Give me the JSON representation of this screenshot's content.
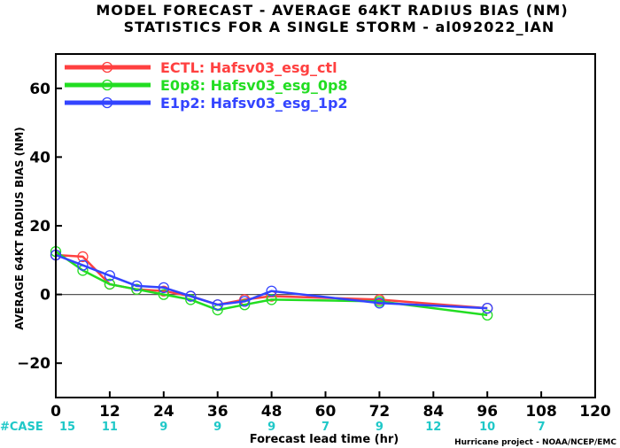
{
  "chart_data": {
    "type": "line",
    "title": "MODEL FORECAST - AVERAGE 64KT RADIUS BIAS (NM)",
    "subtitle": "STATISTICS FOR A SINGLE STORM - al092022_IAN",
    "xlabel": "Forecast lead time (hr)",
    "ylabel": "AVERAGE 64KT RADIUS BIAS (NM)",
    "xlim": [
      0,
      120
    ],
    "ylim": [
      -30,
      70
    ],
    "x_ticks": [
      0,
      12,
      24,
      36,
      48,
      60,
      72,
      84,
      96,
      108,
      120
    ],
    "y_ticks": [
      -20,
      0,
      20,
      40,
      60
    ],
    "x_tick_labels": [
      "0",
      "12",
      "24",
      "36",
      "48",
      "60",
      "72",
      "84",
      "96",
      "108",
      "120"
    ],
    "y_tick_labels": [
      "−20",
      "0",
      "20",
      "40",
      "60"
    ],
    "zero_line": true,
    "legend_position": "top-left",
    "series": [
      {
        "name": "ECTL: Hafsv03_esg_ctl",
        "color": "#ff4040",
        "x": [
          0,
          6,
          12,
          18,
          24,
          30,
          36,
          42,
          48,
          72,
          96
        ],
        "y": [
          11.5,
          11,
          3,
          1.5,
          1,
          -0.5,
          -3,
          -1.5,
          -0.5,
          -1.5,
          -4
        ]
      },
      {
        "name": "E0p8: Hafsv03_esg_0p8",
        "color": "#22dd22",
        "x": [
          0,
          6,
          12,
          18,
          24,
          30,
          36,
          42,
          48,
          72,
          96
        ],
        "y": [
          12.5,
          7,
          3,
          1.5,
          0,
          -1.5,
          -4.5,
          -3,
          -1.5,
          -2,
          -6
        ]
      },
      {
        "name": "E1p2: Hafsv03_esg_1p2",
        "color": "#3344ff",
        "x": [
          0,
          6,
          12,
          18,
          24,
          30,
          36,
          42,
          48,
          72,
          96
        ],
        "y": [
          11.5,
          8.5,
          5.5,
          2.5,
          2,
          -0.5,
          -3,
          -2,
          1,
          -2.5,
          -4
        ]
      }
    ],
    "case_label": "#CASE",
    "cases": [
      {
        "x": 0,
        "n": "15"
      },
      {
        "x": 12,
        "n": "11"
      },
      {
        "x": 24,
        "n": "9"
      },
      {
        "x": 36,
        "n": "9"
      },
      {
        "x": 48,
        "n": "9"
      },
      {
        "x": 60,
        "n": "7"
      },
      {
        "x": 72,
        "n": "9"
      },
      {
        "x": 84,
        "n": "12"
      },
      {
        "x": 96,
        "n": "10"
      },
      {
        "x": 108,
        "n": "7"
      }
    ]
  },
  "credit": "Hurricane project - NOAA/NCEP/EMC"
}
